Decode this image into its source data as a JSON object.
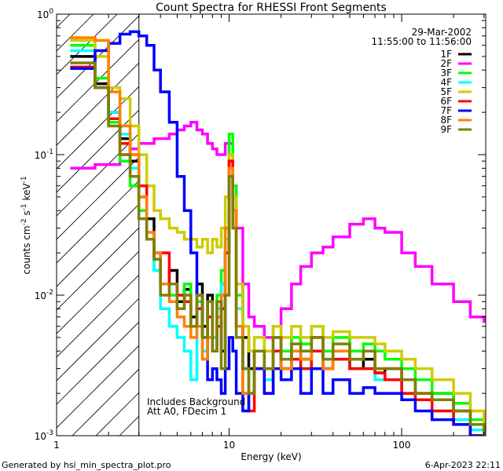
{
  "chart_data": {
    "type": "line",
    "title": "Count Spectra for RHESSI Front Segments",
    "xlabel": "Energy (keV)",
    "ylabel": "counts cm-2 s-1 keV-1",
    "xscale": "log",
    "yscale": "log",
    "xlim": [
      1,
      307
    ],
    "ylim": [
      0.001,
      1
    ],
    "x_tick_labels": [
      "1",
      "10",
      "100"
    ],
    "y_tick_labels": [
      {
        "base": "10",
        "exp": "0"
      },
      {
        "base": "10",
        "exp": "-1"
      },
      {
        "base": "10",
        "exp": "-2"
      },
      {
        "base": "10",
        "exp": "-3"
      }
    ],
    "date": "29-Mar-2002",
    "time_range": "11:55:00 to 11:56:00",
    "annotations": [
      "Includes Background",
      "Att A0, FDecim 1"
    ],
    "attenuator_region_keV": [
      1,
      3
    ],
    "legend_position": "top-right",
    "energy_bins": [
      1.2,
      1.45,
      1.67,
      2,
      2.33,
      2.67,
      3,
      3.33,
      3.67,
      4,
      4.5,
      5,
      5.5,
      6,
      6.5,
      7,
      7.5,
      8,
      8.5,
      9,
      9.5,
      10,
      10.5,
      11,
      12,
      13,
      14,
      16,
      18,
      20,
      23,
      26,
      30,
      35,
      40,
      50,
      60,
      70,
      80,
      100,
      120,
      150,
      200,
      250,
      300
    ],
    "series": [
      {
        "name": "1F",
        "color": "#000000",
        "values": [
          0.5,
          0.5,
          0.32,
          0.2,
          0.13,
          0.09,
          0.05,
          0.035,
          0.02,
          0.012,
          0.015,
          0.009,
          0.011,
          0.007,
          0.012,
          0.006,
          0.01,
          0.005,
          0.009,
          0.004,
          0.02,
          0.09,
          0.05,
          0.012,
          0.005,
          0.003,
          0.004,
          0.0025,
          0.005,
          0.003,
          0.004,
          0.0035,
          0.005,
          0.003,
          0.004,
          0.003,
          0.0035,
          0.0028,
          0.003,
          0.0025,
          0.002,
          0.002,
          0.0015,
          0.0012,
          0.001
        ]
      },
      {
        "name": "2F",
        "color": "#ff00ff",
        "values": [
          0.08,
          0.08,
          0.085,
          0.085,
          0.1,
          0.11,
          0.12,
          0.12,
          0.13,
          0.13,
          0.14,
          0.15,
          0.16,
          0.17,
          0.15,
          0.14,
          0.12,
          0.11,
          0.1,
          0.1,
          0.12,
          0.12,
          0.06,
          0.03,
          0.012,
          0.007,
          0.006,
          0.005,
          0.006,
          0.008,
          0.012,
          0.016,
          0.02,
          0.022,
          0.026,
          0.032,
          0.035,
          0.03,
          0.028,
          0.02,
          0.016,
          0.012,
          0.009,
          0.007,
          0.0065
        ]
      },
      {
        "name": "3F",
        "color": "#00ff00",
        "values": [
          0.6,
          0.6,
          0.35,
          0.17,
          0.09,
          0.06,
          0.04,
          0.025,
          0.015,
          0.012,
          0.01,
          0.008,
          0.012,
          0.006,
          0.009,
          0.005,
          0.007,
          0.004,
          0.01,
          0.015,
          0.03,
          0.14,
          0.06,
          0.01,
          0.003,
          0.002,
          0.004,
          0.003,
          0.006,
          0.004,
          0.005,
          0.0045,
          0.006,
          0.004,
          0.005,
          0.004,
          0.0045,
          0.004,
          0.0035,
          0.003,
          0.0025,
          0.002,
          0.0017,
          0.0013,
          0.001
        ]
      },
      {
        "name": "4F",
        "color": "#00ffff",
        "values": [
          0.55,
          0.55,
          0.3,
          0.2,
          0.14,
          0.08,
          0.035,
          0.025,
          0.015,
          0.008,
          0.006,
          0.005,
          0.004,
          0.0025,
          0.006,
          0.004,
          0.007,
          0.005,
          0.008,
          0.012,
          0.025,
          0.08,
          0.04,
          0.008,
          0.003,
          0.002,
          0.003,
          0.0025,
          0.004,
          0.003,
          0.0035,
          0.003,
          0.004,
          0.003,
          0.0035,
          0.003,
          0.003,
          0.0025,
          0.0025,
          0.002,
          0.0018,
          0.0015,
          0.0013,
          0.0011,
          0.001
        ]
      },
      {
        "name": "5F",
        "color": "#cccc00",
        "values": [
          0.65,
          0.65,
          0.5,
          0.3,
          0.25,
          0.16,
          0.1,
          0.06,
          0.04,
          0.035,
          0.03,
          0.028,
          0.025,
          0.025,
          0.022,
          0.025,
          0.02,
          0.025,
          0.022,
          0.03,
          0.05,
          0.1,
          0.05,
          0.012,
          0.006,
          0.004,
          0.005,
          0.004,
          0.006,
          0.005,
          0.006,
          0.005,
          0.006,
          0.005,
          0.0055,
          0.005,
          0.005,
          0.0045,
          0.004,
          0.0035,
          0.003,
          0.0025,
          0.002,
          0.0015,
          0.0012
        ]
      },
      {
        "name": "6F",
        "color": "#ff0000",
        "values": [
          0.42,
          0.42,
          0.3,
          0.18,
          0.12,
          0.1,
          0.06,
          0.025,
          0.018,
          0.02,
          0.012,
          0.01,
          0.009,
          0.006,
          0.008,
          0.005,
          0.007,
          0.004,
          0.006,
          0.008,
          0.02,
          0.09,
          0.04,
          0.006,
          0.002,
          0.0015,
          0.003,
          0.002,
          0.004,
          0.003,
          0.0035,
          0.003,
          0.004,
          0.003,
          0.0035,
          0.003,
          0.003,
          0.0028,
          0.0025,
          0.002,
          0.0018,
          0.0015,
          0.0012,
          0.001,
          0.001
        ]
      },
      {
        "name": "7F",
        "color": "#0000ff",
        "values": [
          0.41,
          0.41,
          0.55,
          0.62,
          0.72,
          0.75,
          0.7,
          0.6,
          0.4,
          0.28,
          0.17,
          0.07,
          0.04,
          0.02,
          0.01,
          0.005,
          0.0025,
          0.003,
          0.0025,
          0.002,
          0.003,
          0.005,
          0.004,
          0.002,
          0.0015,
          0.002,
          0.003,
          0.002,
          0.003,
          0.0025,
          0.003,
          0.002,
          0.003,
          0.002,
          0.0025,
          0.002,
          0.0022,
          0.002,
          0.002,
          0.0018,
          0.0015,
          0.0013,
          0.0012,
          0.001,
          0.001
        ]
      },
      {
        "name": "8F",
        "color": "#ff8000",
        "values": [
          0.68,
          0.68,
          0.65,
          0.28,
          0.16,
          0.1,
          0.05,
          0.028,
          0.02,
          0.012,
          0.009,
          0.007,
          0.006,
          0.005,
          0.006,
          0.0035,
          0.005,
          0.004,
          0.007,
          0.01,
          0.03,
          0.08,
          0.04,
          0.006,
          0.002,
          0.002,
          0.004,
          0.003,
          0.005,
          0.003,
          0.004,
          0.0035,
          0.005,
          0.003,
          0.004,
          0.0035,
          0.004,
          0.003,
          0.003,
          0.0025,
          0.002,
          0.0018,
          0.0015,
          0.0012,
          0.001
        ]
      },
      {
        "name": "9F",
        "color": "#808000",
        "values": [
          0.45,
          0.45,
          0.3,
          0.16,
          0.1,
          0.07,
          0.035,
          0.025,
          0.018,
          0.01,
          0.012,
          0.008,
          0.01,
          0.006,
          0.01,
          0.005,
          0.009,
          0.004,
          0.009,
          0.003,
          0.01,
          0.07,
          0.03,
          0.005,
          0.003,
          0.002,
          0.004,
          0.003,
          0.005,
          0.0035,
          0.0045,
          0.004,
          0.005,
          0.0035,
          0.0045,
          0.0035,
          0.004,
          0.003,
          0.003,
          0.0025,
          0.002,
          0.0018,
          0.0015,
          0.0012,
          0.001
        ]
      }
    ]
  },
  "footer": {
    "generated_by": "Generated by hsi_min_spectra_plot.pro",
    "timestamp": "6-Apr-2023 22:11"
  }
}
